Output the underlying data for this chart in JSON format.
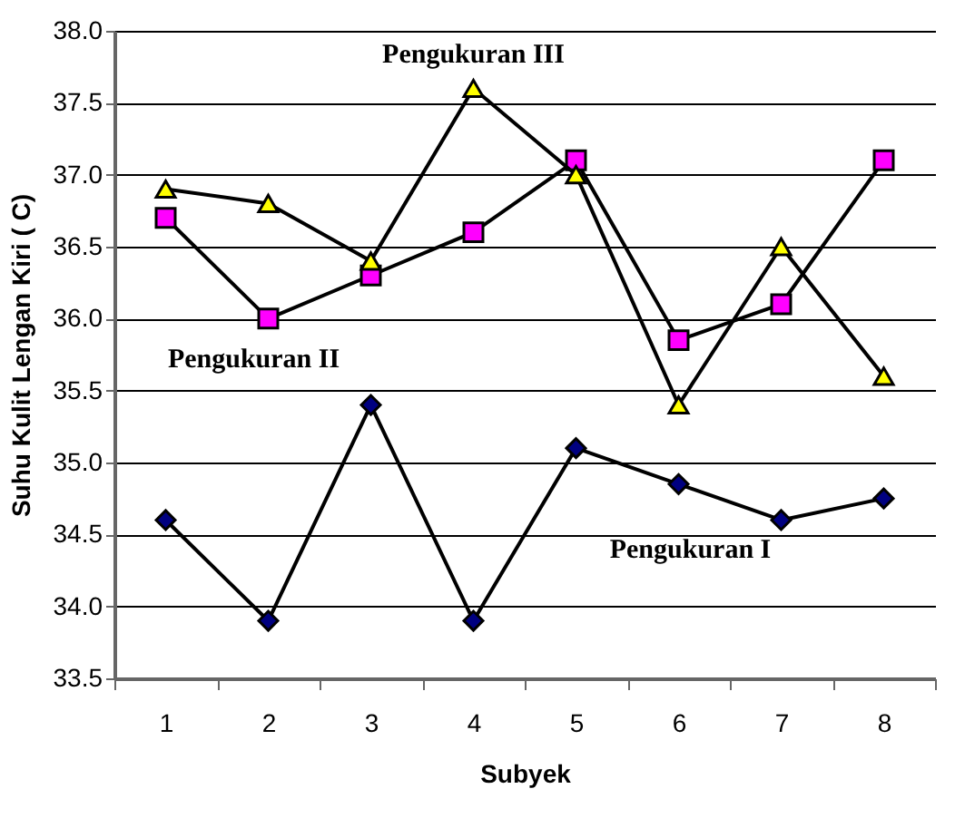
{
  "chart_data": {
    "type": "line",
    "xlabel": "Subyek",
    "ylabel": "Suhu Kulit Lengan Kiri ( C)",
    "categories": [
      "1",
      "2",
      "3",
      "4",
      "5",
      "6",
      "7",
      "8"
    ],
    "series": [
      {
        "name": "Pengukuran I",
        "color": "#000080",
        "marker": "diamond",
        "values": [
          34.6,
          33.9,
          35.4,
          33.9,
          35.1,
          34.85,
          34.6,
          34.75
        ]
      },
      {
        "name": "Pengukuran II",
        "color": "#ff00ff",
        "marker": "square",
        "values": [
          36.7,
          36.0,
          36.3,
          36.6,
          37.1,
          35.85,
          36.1,
          37.1
        ]
      },
      {
        "name": "Pengukuran III",
        "color": "#ffff00",
        "marker": "triangle",
        "values": [
          36.9,
          36.8,
          36.4,
          37.6,
          37.0,
          35.4,
          36.5,
          35.6
        ]
      }
    ],
    "ylim": [
      33.5,
      38.0
    ],
    "yticks": [
      33.5,
      {
        "value": 34,
        "label": "34.0"
      },
      34.5,
      {
        "value": 35,
        "label": "35.0"
      },
      35.5,
      {
        "value": 36,
        "label": "36.0"
      },
      36.5,
      {
        "value": 37,
        "label": "37.0"
      },
      37.5,
      {
        "value": 38,
        "label": "38.0"
      }
    ],
    "grid": "y",
    "line_style": "solid"
  }
}
